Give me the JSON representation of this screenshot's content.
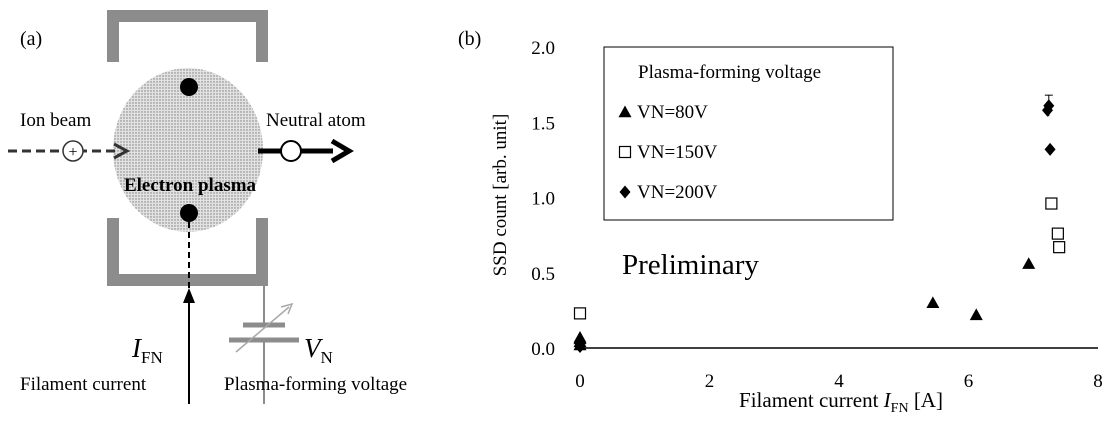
{
  "panel_a": {
    "label": "(a)",
    "ion_beam_label": "Ion beam",
    "neutral_atom_label": "Neutral atom",
    "electron_plasma_label": "Electron plasma",
    "ifn_symbol": "I",
    "ifn_subscript": "FN",
    "vn_symbol": "V",
    "vn_subscript": "N",
    "filament_current_label": "Filament current",
    "plasma_voltage_label": "Plasma-forming voltage",
    "ion_symbol": "+"
  },
  "panel_b": {
    "label": "(b)",
    "annotation": "Preliminary",
    "xlabel_prefix": "Filament current ",
    "xlabel_symbol": "I",
    "xlabel_subscript": "FN",
    "xlabel_suffix": " [A]",
    "ylabel": "SSD count [arb. unit]",
    "legend_title": "Plasma-forming voltage",
    "colors": {
      "axis": "#000000",
      "marker": "#000000"
    }
  },
  "chart_data": {
    "type": "scatter",
    "xlabel": "Filament current IFN [A]",
    "ylabel": "SSD count [arb. unit]",
    "xlim": [
      0,
      8
    ],
    "ylim": [
      0,
      2.0
    ],
    "x_ticks": [
      "0",
      "2",
      "4",
      "6",
      "8"
    ],
    "y_ticks": [
      "0.0",
      "0.5",
      "1.0",
      "1.5",
      "2.0"
    ],
    "grid": false,
    "legend_position": "top-left",
    "legend_title": "Plasma-forming voltage",
    "series": [
      {
        "name": "VN=80V",
        "marker": "triangle-filled",
        "points": [
          [
            0,
            0.02
          ],
          [
            0,
            0.04
          ],
          [
            0,
            0.06
          ],
          [
            0,
            0.07
          ],
          [
            5.45,
            0.3
          ],
          [
            6.12,
            0.22
          ],
          [
            6.93,
            0.56
          ]
        ]
      },
      {
        "name": "VN=150V",
        "marker": "square-open",
        "points": [
          [
            0,
            0.23
          ],
          [
            7.28,
            0.96
          ],
          [
            7.38,
            0.76
          ],
          [
            7.4,
            0.67
          ]
        ]
      },
      {
        "name": "VN=200V",
        "marker": "diamond-filled",
        "points": [
          [
            0,
            0.01
          ],
          [
            7.22,
            1.58
          ],
          [
            7.24,
            1.61
          ],
          [
            7.26,
            1.32
          ]
        ]
      }
    ],
    "error_bars": [
      {
        "x": 7.24,
        "y": 1.61,
        "err": 0.07
      }
    ]
  }
}
